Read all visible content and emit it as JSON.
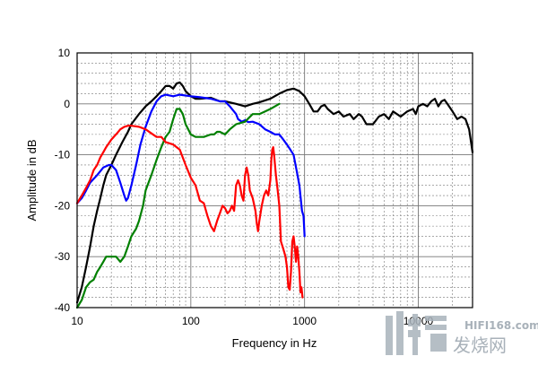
{
  "chart_data": {
    "type": "line",
    "xlabel": "Frequency in Hz",
    "ylabel": "Amplitude in dB",
    "xscale": "log",
    "xlim": [
      10,
      30000
    ],
    "ylim": [
      -40,
      10
    ],
    "grid": true,
    "x_ticks": [
      {
        "value": 10,
        "label": "10"
      },
      {
        "value": 100,
        "label": "100"
      },
      {
        "value": 1000,
        "label": "1000"
      },
      {
        "value": 10000,
        "label": "10000"
      }
    ],
    "y_ticks": [
      {
        "value": 10,
        "label": "10"
      },
      {
        "value": 0,
        "label": "0"
      },
      {
        "value": -10,
        "label": "-10"
      },
      {
        "value": -20,
        "label": "-20"
      },
      {
        "value": -30,
        "label": "-30"
      },
      {
        "value": -40,
        "label": "-40"
      }
    ],
    "series": [
      {
        "color": "#000000",
        "points": [
          [
            10,
            -39
          ],
          [
            11,
            -36
          ],
          [
            12,
            -32
          ],
          [
            13,
            -28
          ],
          [
            14,
            -24
          ],
          [
            15,
            -21
          ],
          [
            16,
            -18.5
          ],
          [
            17,
            -16
          ],
          [
            18,
            -14
          ],
          [
            20,
            -12
          ],
          [
            22,
            -10
          ],
          [
            25,
            -7.5
          ],
          [
            28,
            -5.5
          ],
          [
            30,
            -4
          ],
          [
            35,
            -2
          ],
          [
            40,
            -0.5
          ],
          [
            45,
            0.5
          ],
          [
            50,
            1.5
          ],
          [
            55,
            2.5
          ],
          [
            60,
            3.5
          ],
          [
            65,
            3.5
          ],
          [
            70,
            3
          ],
          [
            75,
            4
          ],
          [
            80,
            4.2
          ],
          [
            85,
            3.5
          ],
          [
            90,
            2.5
          ],
          [
            100,
            1.5
          ],
          [
            110,
            1
          ],
          [
            120,
            1
          ],
          [
            150,
            1.2
          ],
          [
            180,
            0.5
          ],
          [
            200,
            0.5
          ],
          [
            250,
            0
          ],
          [
            300,
            -0.5
          ],
          [
            350,
            0
          ],
          [
            400,
            0.3
          ],
          [
            500,
            1
          ],
          [
            600,
            2
          ],
          [
            700,
            2.7
          ],
          [
            800,
            3
          ],
          [
            900,
            2.5
          ],
          [
            1000,
            1.5
          ],
          [
            1100,
            0
          ],
          [
            1200,
            -1.5
          ],
          [
            1300,
            -1.5
          ],
          [
            1400,
            -0.5
          ],
          [
            1500,
            -0.2
          ],
          [
            1600,
            -1
          ],
          [
            1800,
            -2
          ],
          [
            2000,
            -1.5
          ],
          [
            2200,
            -2.5
          ],
          [
            2500,
            -2
          ],
          [
            2700,
            -3
          ],
          [
            3000,
            -2
          ],
          [
            3200,
            -2.5
          ],
          [
            3500,
            -4
          ],
          [
            4000,
            -4
          ],
          [
            4500,
            -2.5
          ],
          [
            5000,
            -2
          ],
          [
            5500,
            -3
          ],
          [
            6000,
            -1.5
          ],
          [
            7000,
            -2.5
          ],
          [
            8000,
            -1.5
          ],
          [
            9000,
            -1
          ],
          [
            9500,
            -2
          ],
          [
            10000,
            -0.5
          ],
          [
            11000,
            0
          ],
          [
            12000,
            -0.5
          ],
          [
            13000,
            0.5
          ],
          [
            14000,
            1
          ],
          [
            15000,
            -0.5
          ],
          [
            16000,
            0.5
          ],
          [
            17000,
            0.8
          ],
          [
            18000,
            0
          ],
          [
            20000,
            -1.5
          ],
          [
            22000,
            -3
          ],
          [
            24000,
            -2.5
          ],
          [
            26000,
            -3
          ],
          [
            28000,
            -5
          ],
          [
            30000,
            -9.5
          ]
        ]
      },
      {
        "color": "#0000ff",
        "points": [
          [
            10,
            -19.5
          ],
          [
            11,
            -18.5
          ],
          [
            12,
            -17
          ],
          [
            13,
            -15.5
          ],
          [
            15,
            -14
          ],
          [
            17,
            -12.5
          ],
          [
            19,
            -12
          ],
          [
            20,
            -12
          ],
          [
            22,
            -13
          ],
          [
            24,
            -15.5
          ],
          [
            26,
            -18
          ],
          [
            27,
            -19
          ],
          [
            28,
            -18.5
          ],
          [
            30,
            -16
          ],
          [
            33,
            -12
          ],
          [
            36,
            -8
          ],
          [
            40,
            -4.5
          ],
          [
            45,
            -1.5
          ],
          [
            50,
            0.5
          ],
          [
            55,
            1.5
          ],
          [
            60,
            1.8
          ],
          [
            70,
            1.5
          ],
          [
            80,
            1.8
          ],
          [
            100,
            1.5
          ],
          [
            120,
            1.3
          ],
          [
            150,
            1
          ],
          [
            180,
            0.5
          ],
          [
            200,
            0.5
          ],
          [
            220,
            -0.5
          ],
          [
            250,
            -2
          ],
          [
            260,
            -3
          ],
          [
            280,
            -3.5
          ],
          [
            300,
            -3.2
          ],
          [
            320,
            -3.6
          ],
          [
            350,
            -3.5
          ],
          [
            400,
            -4
          ],
          [
            450,
            -5
          ],
          [
            500,
            -5.5
          ],
          [
            550,
            -6
          ],
          [
            600,
            -6
          ],
          [
            650,
            -7
          ],
          [
            700,
            -8
          ],
          [
            750,
            -9
          ],
          [
            800,
            -10
          ],
          [
            850,
            -13
          ],
          [
            900,
            -16
          ],
          [
            950,
            -21
          ],
          [
            980,
            -22
          ],
          [
            1000,
            -26
          ]
        ]
      },
      {
        "color": "#008000",
        "points": [
          [
            10,
            -40
          ],
          [
            11,
            -38.5
          ],
          [
            12,
            -36
          ],
          [
            13,
            -35
          ],
          [
            14,
            -34.5
          ],
          [
            15,
            -33
          ],
          [
            16,
            -32
          ],
          [
            17,
            -31
          ],
          [
            18,
            -30
          ],
          [
            20,
            -30
          ],
          [
            22,
            -30
          ],
          [
            24,
            -31
          ],
          [
            26,
            -30
          ],
          [
            28,
            -28
          ],
          [
            30,
            -26
          ],
          [
            33,
            -24.5
          ],
          [
            35,
            -23
          ],
          [
            38,
            -20
          ],
          [
            40,
            -17
          ],
          [
            45,
            -14
          ],
          [
            50,
            -11
          ],
          [
            55,
            -8.5
          ],
          [
            60,
            -6.5
          ],
          [
            65,
            -5.5
          ],
          [
            70,
            -3
          ],
          [
            75,
            -1
          ],
          [
            80,
            -1
          ],
          [
            85,
            -2
          ],
          [
            90,
            -4
          ],
          [
            100,
            -6
          ],
          [
            110,
            -6.5
          ],
          [
            120,
            -6.5
          ],
          [
            130,
            -6.5
          ],
          [
            150,
            -6
          ],
          [
            160,
            -6
          ],
          [
            170,
            -5.5
          ],
          [
            180,
            -5.5
          ],
          [
            200,
            -6
          ],
          [
            220,
            -5
          ],
          [
            250,
            -4
          ],
          [
            300,
            -3.5
          ],
          [
            350,
            -2
          ],
          [
            400,
            -2
          ],
          [
            450,
            -1.5
          ],
          [
            500,
            -1
          ],
          [
            550,
            -0.5
          ],
          [
            600,
            0
          ]
        ]
      },
      {
        "color": "#ff0000",
        "points": [
          [
            10,
            -19.5
          ],
          [
            11,
            -18
          ],
          [
            12,
            -16.5
          ],
          [
            13,
            -15
          ],
          [
            14,
            -13
          ],
          [
            15,
            -12
          ],
          [
            16,
            -10.5
          ],
          [
            17,
            -9.5
          ],
          [
            18,
            -8.5
          ],
          [
            20,
            -7
          ],
          [
            22,
            -6
          ],
          [
            24,
            -5
          ],
          [
            26,
            -4.5
          ],
          [
            28,
            -4.3
          ],
          [
            30,
            -4.3
          ],
          [
            35,
            -4.5
          ],
          [
            40,
            -5
          ],
          [
            45,
            -5.8
          ],
          [
            50,
            -6.5
          ],
          [
            55,
            -6.5
          ],
          [
            60,
            -7.5
          ],
          [
            70,
            -8
          ],
          [
            80,
            -9
          ],
          [
            90,
            -12
          ],
          [
            100,
            -14.5
          ],
          [
            110,
            -16
          ],
          [
            120,
            -19
          ],
          [
            130,
            -19.5
          ],
          [
            140,
            -22
          ],
          [
            150,
            -24
          ],
          [
            160,
            -25
          ],
          [
            170,
            -23
          ],
          [
            180,
            -21.5
          ],
          [
            190,
            -20
          ],
          [
            200,
            -20.5
          ],
          [
            210,
            -21.5
          ],
          [
            220,
            -21
          ],
          [
            230,
            -20
          ],
          [
            240,
            -21
          ],
          [
            250,
            -16
          ],
          [
            260,
            -15
          ],
          [
            270,
            -16
          ],
          [
            280,
            -18
          ],
          [
            290,
            -19
          ],
          [
            300,
            -14
          ],
          [
            310,
            -12.5
          ],
          [
            320,
            -14
          ],
          [
            330,
            -17
          ],
          [
            350,
            -18.5
          ],
          [
            370,
            -21
          ],
          [
            380,
            -23.5
          ],
          [
            390,
            -25
          ],
          [
            400,
            -23
          ],
          [
            420,
            -20
          ],
          [
            440,
            -18
          ],
          [
            460,
            -17
          ],
          [
            480,
            -18
          ],
          [
            500,
            -15
          ],
          [
            510,
            -11
          ],
          [
            520,
            -9
          ],
          [
            530,
            -8.5
          ],
          [
            540,
            -10
          ],
          [
            560,
            -14
          ],
          [
            580,
            -17
          ],
          [
            600,
            -20
          ],
          [
            620,
            -27
          ],
          [
            640,
            -28
          ],
          [
            660,
            -29
          ],
          [
            680,
            -30
          ],
          [
            700,
            -32
          ],
          [
            720,
            -36
          ],
          [
            740,
            -36.5
          ],
          [
            760,
            -33
          ],
          [
            780,
            -27
          ],
          [
            800,
            -26
          ],
          [
            820,
            -28
          ],
          [
            840,
            -31
          ],
          [
            860,
            -28
          ],
          [
            880,
            -30
          ],
          [
            900,
            -33
          ],
          [
            920,
            -37
          ],
          [
            940,
            -36
          ],
          [
            960,
            -38
          ]
        ]
      }
    ]
  },
  "watermark": {
    "site": "HIFI168.com",
    "name": "发烧网"
  }
}
